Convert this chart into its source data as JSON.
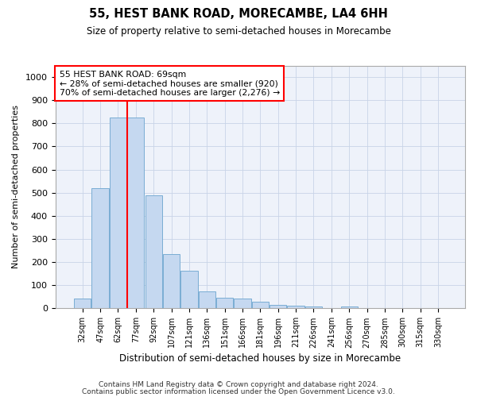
{
  "title1": "55, HEST BANK ROAD, MORECAMBE, LA4 6HH",
  "title2": "Size of property relative to semi-detached houses in Morecambe",
  "xlabel": "Distribution of semi-detached houses by size in Morecambe",
  "ylabel": "Number of semi-detached properties",
  "categories": [
    "32sqm",
    "47sqm",
    "62sqm",
    "77sqm",
    "92sqm",
    "107sqm",
    "121sqm",
    "136sqm",
    "151sqm",
    "166sqm",
    "181sqm",
    "196sqm",
    "211sqm",
    "226sqm",
    "241sqm",
    "256sqm",
    "270sqm",
    "285sqm",
    "300sqm",
    "315sqm",
    "330sqm"
  ],
  "values": [
    42,
    520,
    825,
    825,
    490,
    235,
    163,
    73,
    45,
    43,
    29,
    15,
    12,
    8,
    0,
    9,
    0,
    0,
    0,
    0,
    0
  ],
  "bar_color": "#c5d8f0",
  "bar_edge_color": "#7aadd4",
  "vline_x_index": 2.5,
  "vline_color": "red",
  "annotation_text": "55 HEST BANK ROAD: 69sqm\n← 28% of semi-detached houses are smaller (920)\n70% of semi-detached houses are larger (2,276) →",
  "annotation_box_color": "white",
  "annotation_box_edge": "red",
  "ylim": [
    0,
    1050
  ],
  "yticks": [
    0,
    100,
    200,
    300,
    400,
    500,
    600,
    700,
    800,
    900,
    1000
  ],
  "footer1": "Contains HM Land Registry data © Crown copyright and database right 2024.",
  "footer2": "Contains public sector information licensed under the Open Government Licence v3.0.",
  "bg_color": "#eef2fa",
  "grid_color": "#c8d4e8"
}
